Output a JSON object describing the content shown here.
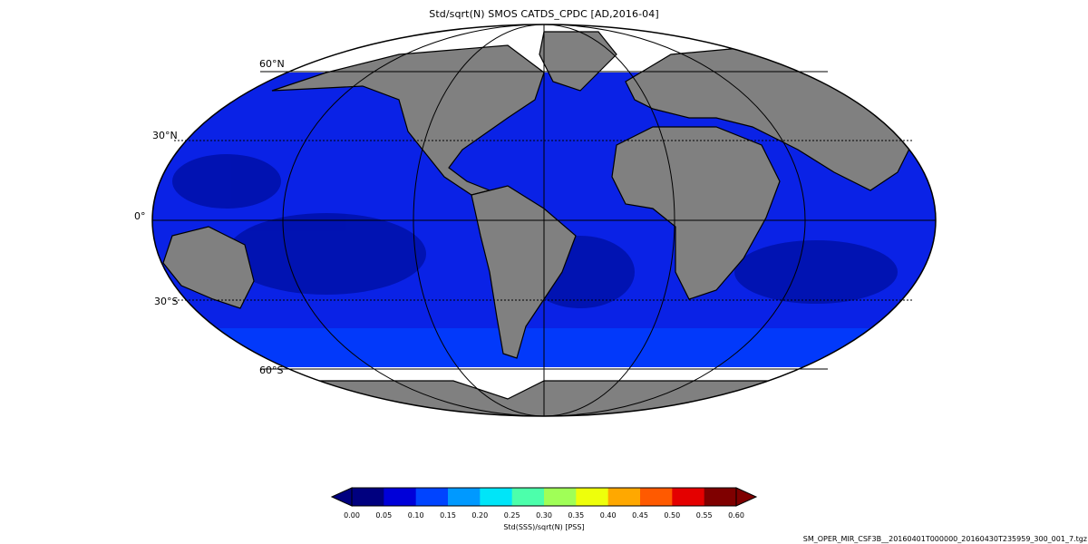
{
  "title": "Std/sqrt(N) SMOS CATDS_CPDC [AD,2016-04]",
  "map": {
    "projection": "Mollweide",
    "land_color": "#808080",
    "no_data_color": "#ffffff",
    "lat_labels": [
      "60°N",
      "30°N",
      "0°",
      "30°S",
      "60°S"
    ]
  },
  "colorbar": {
    "label": "Std(SSS)/sqrt(N) [PSS]",
    "ticks": [
      "0.00",
      "0.05",
      "0.10",
      "0.15",
      "0.20",
      "0.25",
      "0.30",
      "0.35",
      "0.40",
      "0.45",
      "0.50",
      "0.55",
      "0.60"
    ],
    "colors": [
      "#00007f",
      "#0000d9",
      "#0044ff",
      "#0099ff",
      "#00e5f8",
      "#4cffab",
      "#a0ff57",
      "#eeff0b",
      "#ffa800",
      "#ff5a00",
      "#e40000",
      "#7f0000"
    ],
    "under_color": "#000080",
    "over_color": "#7f0000"
  },
  "file_name": "SM_OPER_MIR_CSF3B__20160401T000000_20160430T235959_300_001_7.tgz"
}
